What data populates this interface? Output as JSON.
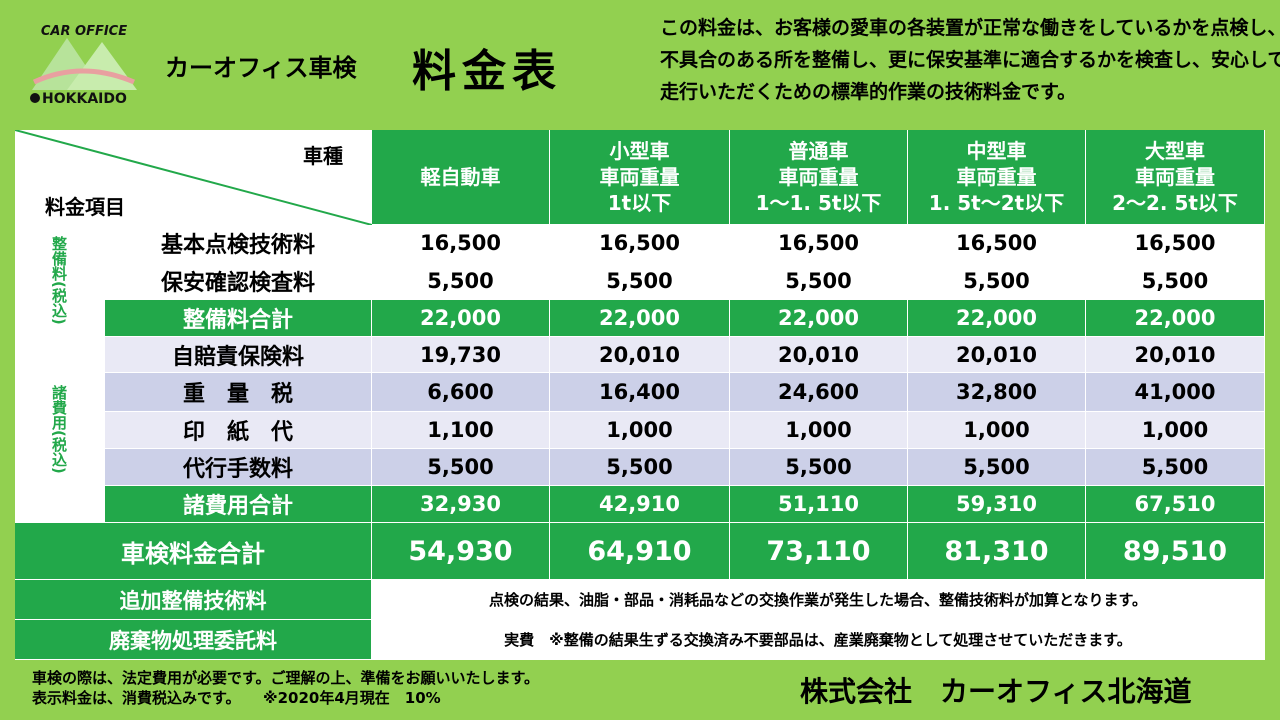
{
  "logo": {
    "top": "CAR OFFICE",
    "bottom": "HOKKAIDO"
  },
  "header": {
    "subtitle": "カーオフィス車検",
    "title": "料金表",
    "description": [
      "この料金は、お客様の愛車の各装置が正常な働きをしているかを点検し、",
      "不具合のある所を整備し、更に保安基準に適合するかを検査し、安心して",
      "走行いただくための標準的作業の技術料金です。"
    ]
  },
  "table": {
    "corner": {
      "top": "車種",
      "bottom": "料金項目"
    },
    "columns": [
      [
        "軽自動車"
      ],
      [
        "小型車",
        "車両重量",
        "1t以下"
      ],
      [
        "普通車",
        "車両重量",
        "1～1. 5t以下"
      ],
      [
        "中型車",
        "車両重量",
        "1. 5t～2t以下"
      ],
      [
        "大型車",
        "車両重量",
        "2～2. 5t以下"
      ]
    ],
    "groups": [
      {
        "label": "整備料(税込)",
        "rows": [
          {
            "label": "基本点検技術料",
            "values": [
              "16,500",
              "16,500",
              "16,500",
              "16,500",
              "16,500"
            ]
          },
          {
            "label": "保安確認検査料",
            "values": [
              "5,500",
              "5,500",
              "5,500",
              "5,500",
              "5,500"
            ]
          }
        ],
        "total": {
          "label": "整備料合計",
          "values": [
            "22,000",
            "22,000",
            "22,000",
            "22,000",
            "22,000"
          ]
        }
      },
      {
        "label": "諸費用(税込)",
        "rows": [
          {
            "label": "自賠責保険料",
            "values": [
              "19,730",
              "20,010",
              "20,010",
              "20,010",
              "20,010"
            ]
          },
          {
            "label": "重　量　税",
            "values": [
              "6,600",
              "16,400",
              "24,600",
              "32,800",
              "41,000"
            ]
          },
          {
            "label": "印　紙　代",
            "values": [
              "1,100",
              "1,000",
              "1,000",
              "1,000",
              "1,000"
            ]
          },
          {
            "label": "代行手数料",
            "values": [
              "5,500",
              "5,500",
              "5,500",
              "5,500",
              "5,500"
            ]
          }
        ],
        "total": {
          "label": "諸費用合計",
          "values": [
            "32,930",
            "42,910",
            "51,110",
            "59,310",
            "67,510"
          ]
        }
      }
    ],
    "grand_total": {
      "label": "車検料金合計",
      "values": [
        "54,930",
        "64,910",
        "73,110",
        "81,310",
        "89,510"
      ]
    },
    "notes": [
      {
        "label": "追加整備技術料",
        "text": "点検の結果、油脂・部品・消耗品などの交換作業が発生した場合、整備技術料が加算となります。"
      },
      {
        "label": "廃棄物処理委託料",
        "text": "実費　※整備の結果生ずる交換済み不要部品は、産業廃棄物として処理させていただきます。"
      }
    ]
  },
  "footer": {
    "notes": [
      "車検の際は、法定費用が必要です。ご理解の上、準備をお願いいたします。",
      "表示料金は、消費税込みです。　　※2020年4月現在　10%"
    ],
    "company": "株式会社　カーオフィス北海道"
  }
}
